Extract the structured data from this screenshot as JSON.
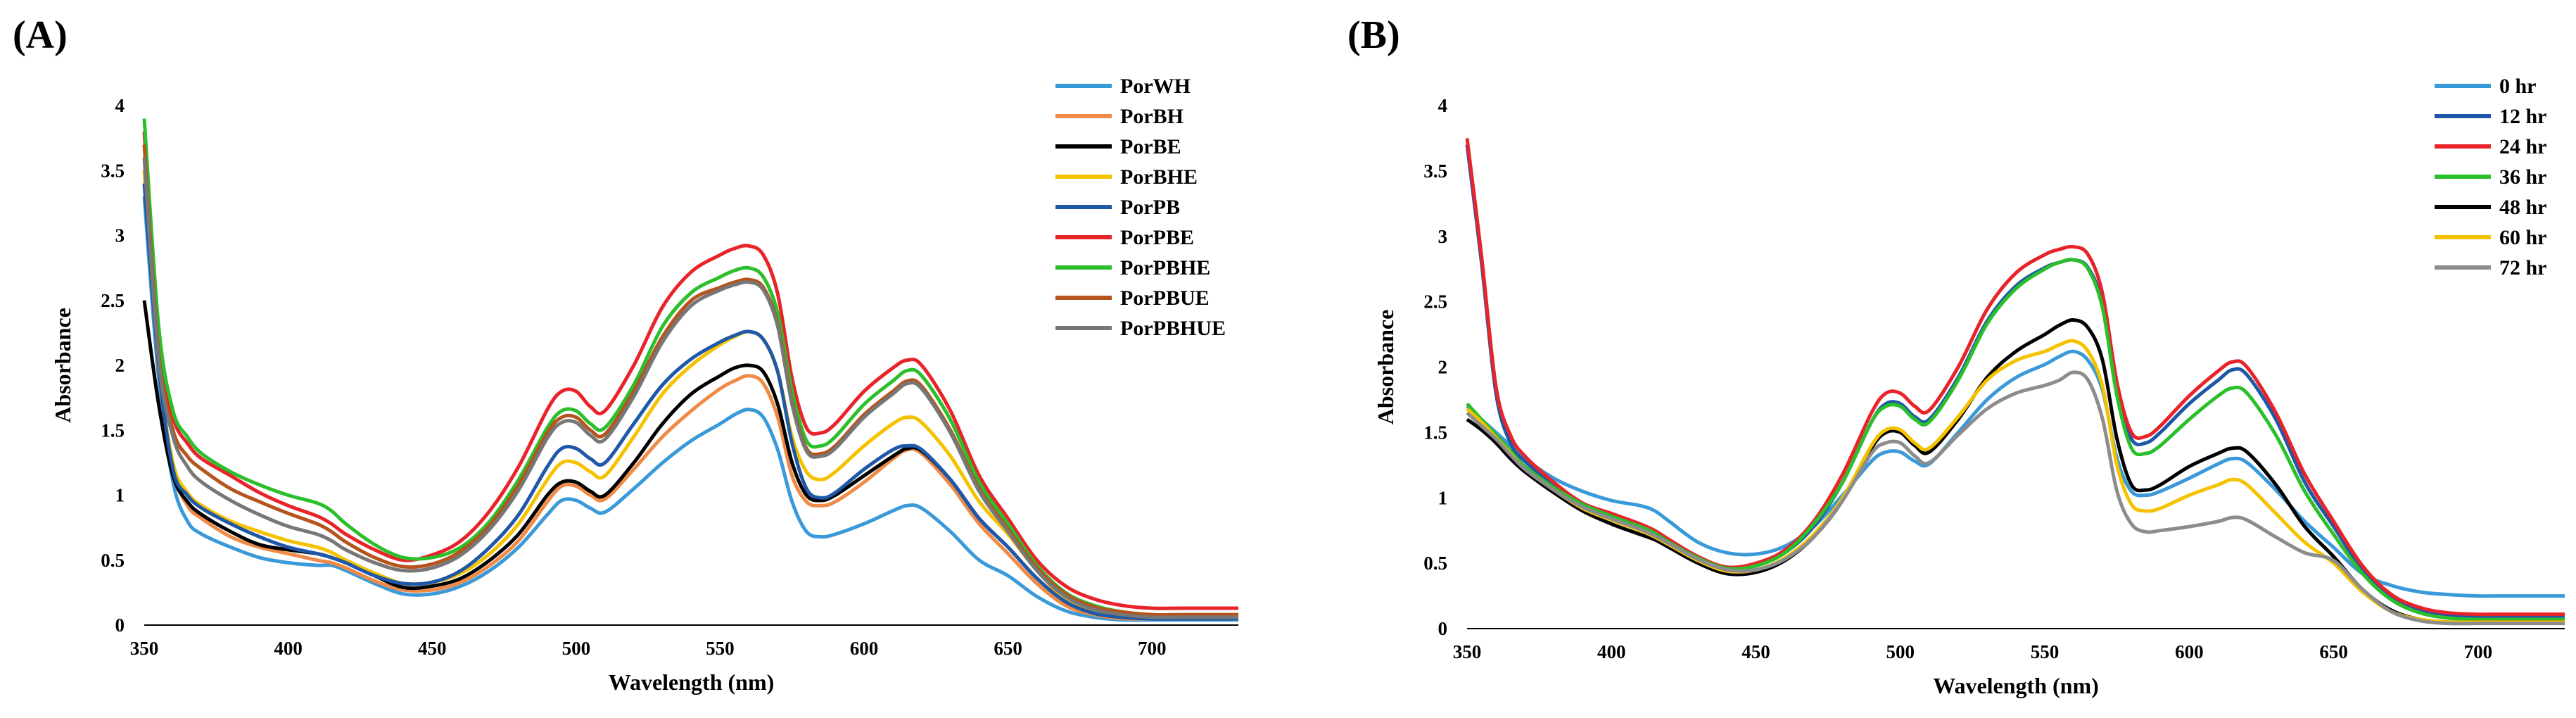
{
  "chart_data": [
    {
      "type": "line",
      "panel_label": "(A)",
      "title": "",
      "xlabel": "Wavelength (nm)",
      "ylabel": "Absorbance",
      "xlim": [
        350,
        730
      ],
      "ylim": [
        0,
        4
      ],
      "xticks": [
        "350",
        "400",
        "450",
        "500",
        "550",
        "600",
        "650",
        "700"
      ],
      "yticks": [
        "0",
        "0.5",
        "1",
        "1.5",
        "2",
        "2.5",
        "3",
        "3.5",
        "4"
      ],
      "legend_position": "top-right",
      "grid": false,
      "x": [
        350,
        355,
        360,
        365,
        370,
        380,
        390,
        400,
        410,
        415,
        420,
        430,
        440,
        450,
        460,
        470,
        480,
        490,
        495,
        500,
        505,
        510,
        520,
        530,
        540,
        550,
        555,
        560,
        565,
        570,
        575,
        580,
        585,
        590,
        600,
        610,
        615,
        620,
        630,
        640,
        650,
        660,
        670,
        680,
        690,
        700,
        710,
        720,
        730
      ],
      "series": [
        {
          "name": "PorWH",
          "color": "#3a9ad9",
          "values": [
            3.3,
            1.9,
            1.1,
            0.8,
            0.7,
            0.6,
            0.52,
            0.48,
            0.46,
            0.46,
            0.42,
            0.32,
            0.24,
            0.24,
            0.3,
            0.42,
            0.6,
            0.85,
            0.96,
            0.96,
            0.9,
            0.87,
            1.05,
            1.25,
            1.42,
            1.55,
            1.62,
            1.66,
            1.6,
            1.35,
            0.95,
            0.72,
            0.68,
            0.7,
            0.78,
            0.88,
            0.92,
            0.9,
            0.72,
            0.5,
            0.38,
            0.22,
            0.11,
            0.06,
            0.04,
            0.04,
            0.04,
            0.04,
            0.04
          ]
        },
        {
          "name": "PorBH",
          "color": "#ef8a47",
          "values": [
            3.5,
            2.0,
            1.2,
            0.92,
            0.82,
            0.68,
            0.6,
            0.55,
            0.5,
            0.48,
            0.44,
            0.34,
            0.27,
            0.27,
            0.33,
            0.46,
            0.65,
            0.95,
            1.07,
            1.07,
            1.0,
            0.97,
            1.2,
            1.45,
            1.65,
            1.82,
            1.88,
            1.92,
            1.86,
            1.6,
            1.15,
            0.95,
            0.92,
            0.95,
            1.1,
            1.28,
            1.35,
            1.32,
            1.08,
            0.78,
            0.55,
            0.32,
            0.15,
            0.08,
            0.05,
            0.05,
            0.05,
            0.05,
            0.05
          ]
        },
        {
          "name": "PorBE",
          "color": "#000000",
          "values": [
            2.5,
            1.7,
            1.15,
            0.95,
            0.85,
            0.72,
            0.62,
            0.58,
            0.55,
            0.52,
            0.48,
            0.38,
            0.29,
            0.3,
            0.36,
            0.5,
            0.7,
            1.0,
            1.1,
            1.1,
            1.03,
            1.0,
            1.25,
            1.55,
            1.78,
            1.92,
            1.98,
            2.0,
            1.95,
            1.7,
            1.25,
            1.0,
            0.96,
            1.0,
            1.15,
            1.3,
            1.36,
            1.34,
            1.12,
            0.82,
            0.6,
            0.36,
            0.18,
            0.09,
            0.06,
            0.05,
            0.05,
            0.05,
            0.05
          ]
        },
        {
          "name": "PorBHE",
          "color": "#f5c200",
          "values": [
            3.5,
            2.0,
            1.25,
            1.02,
            0.92,
            0.8,
            0.72,
            0.65,
            0.6,
            0.56,
            0.5,
            0.4,
            0.32,
            0.33,
            0.4,
            0.55,
            0.78,
            1.12,
            1.25,
            1.25,
            1.18,
            1.15,
            1.45,
            1.78,
            2.0,
            2.16,
            2.22,
            2.26,
            2.2,
            1.95,
            1.45,
            1.18,
            1.12,
            1.18,
            1.38,
            1.55,
            1.6,
            1.56,
            1.3,
            0.95,
            0.7,
            0.42,
            0.2,
            0.1,
            0.07,
            0.06,
            0.06,
            0.06,
            0.06
          ]
        },
        {
          "name": "PorPB",
          "color": "#1f58a8",
          "values": [
            3.4,
            2.0,
            1.2,
            1.0,
            0.9,
            0.78,
            0.68,
            0.6,
            0.55,
            0.52,
            0.48,
            0.38,
            0.32,
            0.33,
            0.42,
            0.6,
            0.85,
            1.22,
            1.36,
            1.36,
            1.28,
            1.25,
            1.55,
            1.85,
            2.05,
            2.18,
            2.23,
            2.26,
            2.2,
            1.95,
            1.4,
            1.05,
            0.98,
            1.02,
            1.2,
            1.35,
            1.38,
            1.35,
            1.12,
            0.82,
            0.6,
            0.36,
            0.18,
            0.09,
            0.06,
            0.05,
            0.05,
            0.05,
            0.05
          ]
        },
        {
          "name": "PorPBE",
          "color": "#e8232a",
          "values": [
            3.8,
            2.2,
            1.6,
            1.4,
            1.28,
            1.15,
            1.02,
            0.92,
            0.84,
            0.78,
            0.7,
            0.58,
            0.5,
            0.54,
            0.65,
            0.88,
            1.22,
            1.66,
            1.8,
            1.8,
            1.68,
            1.65,
            2.0,
            2.45,
            2.72,
            2.85,
            2.9,
            2.92,
            2.85,
            2.55,
            1.9,
            1.52,
            1.48,
            1.55,
            1.8,
            1.98,
            2.04,
            2.0,
            1.65,
            1.15,
            0.82,
            0.5,
            0.3,
            0.2,
            0.15,
            0.13,
            0.13,
            0.13,
            0.13
          ]
        },
        {
          "name": "PorPBHE",
          "color": "#2bbf2b",
          "values": [
            3.9,
            2.3,
            1.65,
            1.45,
            1.32,
            1.18,
            1.08,
            1.0,
            0.94,
            0.88,
            0.78,
            0.62,
            0.52,
            0.52,
            0.6,
            0.8,
            1.12,
            1.52,
            1.65,
            1.65,
            1.55,
            1.52,
            1.85,
            2.3,
            2.56,
            2.68,
            2.73,
            2.75,
            2.68,
            2.4,
            1.8,
            1.42,
            1.38,
            1.45,
            1.7,
            1.88,
            1.96,
            1.92,
            1.58,
            1.1,
            0.78,
            0.46,
            0.25,
            0.15,
            0.1,
            0.08,
            0.08,
            0.08,
            0.08
          ]
        },
        {
          "name": "PorPBUE",
          "color": "#b5541c",
          "values": [
            3.7,
            2.1,
            1.5,
            1.3,
            1.2,
            1.05,
            0.95,
            0.86,
            0.78,
            0.72,
            0.64,
            0.52,
            0.45,
            0.47,
            0.57,
            0.77,
            1.08,
            1.48,
            1.6,
            1.6,
            1.5,
            1.47,
            1.8,
            2.22,
            2.5,
            2.6,
            2.64,
            2.66,
            2.6,
            2.32,
            1.72,
            1.36,
            1.32,
            1.38,
            1.62,
            1.8,
            1.88,
            1.84,
            1.5,
            1.05,
            0.74,
            0.44,
            0.24,
            0.14,
            0.1,
            0.08,
            0.08,
            0.08,
            0.08
          ]
        },
        {
          "name": "PorPBHUE",
          "color": "#777777",
          "values": [
            3.6,
            2.05,
            1.45,
            1.22,
            1.1,
            0.96,
            0.85,
            0.76,
            0.7,
            0.65,
            0.58,
            0.48,
            0.42,
            0.44,
            0.54,
            0.74,
            1.04,
            1.44,
            1.56,
            1.56,
            1.46,
            1.43,
            1.76,
            2.18,
            2.46,
            2.58,
            2.62,
            2.64,
            2.58,
            2.3,
            1.7,
            1.34,
            1.3,
            1.36,
            1.6,
            1.78,
            1.86,
            1.82,
            1.48,
            1.03,
            0.72,
            0.42,
            0.22,
            0.12,
            0.08,
            0.06,
            0.06,
            0.06,
            0.06
          ]
        }
      ]
    },
    {
      "type": "line",
      "panel_label": "(B)",
      "title": "",
      "xlabel": "Wavelength (nm)",
      "ylabel": "Absorbance",
      "xlim": [
        350,
        730
      ],
      "ylim": [
        0,
        4
      ],
      "xticks": [
        "350",
        "400",
        "450",
        "500",
        "550",
        "600",
        "650",
        "700"
      ],
      "yticks": [
        "0",
        "0.5",
        "1",
        "1.5",
        "2",
        "2.5",
        "3",
        "3.5",
        "4"
      ],
      "legend_position": "top-right",
      "grid": false,
      "x": [
        350,
        355,
        360,
        365,
        370,
        380,
        390,
        400,
        410,
        415,
        420,
        430,
        440,
        450,
        460,
        470,
        480,
        490,
        495,
        500,
        505,
        510,
        520,
        530,
        540,
        550,
        555,
        560,
        565,
        570,
        575,
        580,
        585,
        590,
        600,
        610,
        615,
        620,
        630,
        640,
        650,
        660,
        670,
        680,
        690,
        700,
        710,
        720,
        730
      ],
      "series": [
        {
          "name": "0 hr",
          "color": "#3a9ad9",
          "values": [
            1.7,
            1.6,
            1.5,
            1.4,
            1.3,
            1.15,
            1.05,
            0.98,
            0.94,
            0.9,
            0.82,
            0.66,
            0.58,
            0.57,
            0.63,
            0.78,
            1.02,
            1.28,
            1.35,
            1.35,
            1.28,
            1.26,
            1.5,
            1.75,
            1.92,
            2.02,
            2.08,
            2.12,
            2.05,
            1.82,
            1.3,
            1.05,
            1.02,
            1.05,
            1.15,
            1.26,
            1.3,
            1.27,
            1.06,
            0.82,
            0.62,
            0.42,
            0.33,
            0.28,
            0.26,
            0.25,
            0.25,
            0.25,
            0.25
          ]
        },
        {
          "name": "12 hr",
          "color": "#1f58a8",
          "values": [
            3.7,
            2.8,
            1.8,
            1.42,
            1.28,
            1.1,
            0.95,
            0.87,
            0.78,
            0.73,
            0.66,
            0.54,
            0.46,
            0.48,
            0.58,
            0.78,
            1.12,
            1.58,
            1.72,
            1.72,
            1.62,
            1.6,
            1.92,
            2.35,
            2.62,
            2.76,
            2.8,
            2.82,
            2.76,
            2.48,
            1.82,
            1.45,
            1.42,
            1.5,
            1.72,
            1.9,
            1.98,
            1.94,
            1.6,
            1.12,
            0.78,
            0.45,
            0.24,
            0.14,
            0.1,
            0.09,
            0.09,
            0.09,
            0.09
          ]
        },
        {
          "name": "24 hr",
          "color": "#e8232a",
          "values": [
            3.75,
            2.85,
            1.85,
            1.48,
            1.32,
            1.12,
            0.96,
            0.88,
            0.8,
            0.75,
            0.68,
            0.55,
            0.47,
            0.5,
            0.6,
            0.82,
            1.18,
            1.65,
            1.8,
            1.8,
            1.7,
            1.67,
            2.0,
            2.44,
            2.72,
            2.86,
            2.9,
            2.92,
            2.86,
            2.56,
            1.88,
            1.5,
            1.47,
            1.55,
            1.78,
            1.97,
            2.04,
            2.0,
            1.65,
            1.18,
            0.82,
            0.48,
            0.26,
            0.16,
            0.12,
            0.11,
            0.11,
            0.11,
            0.11
          ]
        },
        {
          "name": "36 hr",
          "color": "#2bbf2b",
          "values": [
            1.72,
            1.6,
            1.48,
            1.36,
            1.24,
            1.08,
            0.95,
            0.86,
            0.78,
            0.73,
            0.66,
            0.54,
            0.46,
            0.48,
            0.58,
            0.8,
            1.12,
            1.58,
            1.7,
            1.7,
            1.6,
            1.58,
            1.9,
            2.33,
            2.6,
            2.75,
            2.8,
            2.82,
            2.75,
            2.45,
            1.78,
            1.38,
            1.34,
            1.4,
            1.6,
            1.78,
            1.84,
            1.8,
            1.48,
            1.05,
            0.72,
            0.42,
            0.22,
            0.12,
            0.08,
            0.07,
            0.07,
            0.07,
            0.07
          ]
        },
        {
          "name": "48 hr",
          "color": "#000000",
          "values": [
            1.6,
            1.52,
            1.42,
            1.3,
            1.2,
            1.04,
            0.9,
            0.8,
            0.72,
            0.68,
            0.62,
            0.5,
            0.42,
            0.43,
            0.52,
            0.7,
            0.98,
            1.38,
            1.5,
            1.5,
            1.4,
            1.35,
            1.6,
            1.92,
            2.12,
            2.25,
            2.32,
            2.36,
            2.3,
            2.05,
            1.45,
            1.1,
            1.06,
            1.1,
            1.24,
            1.34,
            1.38,
            1.35,
            1.1,
            0.78,
            0.55,
            0.3,
            0.14,
            0.07,
            0.05,
            0.05,
            0.05,
            0.05,
            0.05
          ]
        },
        {
          "name": "60 hr",
          "color": "#f5c200",
          "values": [
            1.68,
            1.58,
            1.46,
            1.34,
            1.22,
            1.06,
            0.92,
            0.83,
            0.75,
            0.7,
            0.64,
            0.52,
            0.44,
            0.45,
            0.54,
            0.72,
            1.0,
            1.4,
            1.52,
            1.52,
            1.42,
            1.38,
            1.62,
            1.9,
            2.05,
            2.12,
            2.17,
            2.2,
            2.12,
            1.85,
            1.25,
            0.95,
            0.9,
            0.92,
            1.02,
            1.1,
            1.14,
            1.1,
            0.88,
            0.66,
            0.5,
            0.28,
            0.13,
            0.07,
            0.05,
            0.05,
            0.05,
            0.05,
            0.05
          ]
        },
        {
          "name": "72 hr",
          "color": "#8c8c8c",
          "values": [
            1.65,
            1.55,
            1.45,
            1.33,
            1.22,
            1.06,
            0.93,
            0.84,
            0.76,
            0.71,
            0.65,
            0.53,
            0.45,
            0.45,
            0.53,
            0.7,
            0.98,
            1.34,
            1.42,
            1.42,
            1.32,
            1.27,
            1.48,
            1.68,
            1.8,
            1.86,
            1.9,
            1.96,
            1.9,
            1.6,
            1.05,
            0.8,
            0.74,
            0.75,
            0.78,
            0.82,
            0.85,
            0.83,
            0.7,
            0.58,
            0.52,
            0.3,
            0.13,
            0.06,
            0.04,
            0.04,
            0.04,
            0.04,
            0.04
          ]
        }
      ]
    }
  ]
}
